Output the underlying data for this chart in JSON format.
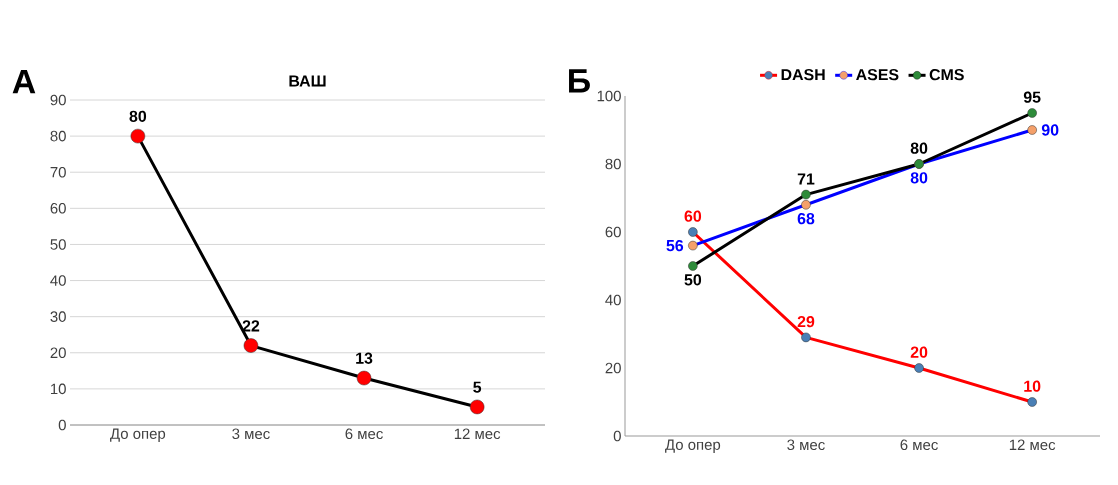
{
  "chart_data": [
    {
      "type": "line",
      "title": "ВАШ",
      "annotations": [
        "А"
      ],
      "categories": [
        "До опер",
        "3 мес",
        "6 мес",
        "12 мес"
      ],
      "series": [
        {
          "color": "#000000",
          "colors": [
            "#ff0000",
            "#ff0000",
            "#ff0000",
            "#ff0000"
          ],
          "values": [
            80,
            22,
            13,
            5
          ]
        }
      ],
      "ylim": [
        0,
        90
      ],
      "yticks": [
        0,
        10,
        20,
        30,
        40,
        50,
        60,
        70,
        80,
        90
      ],
      "grid": "y",
      "marker": "circle",
      "data_labels": true,
      "legend": false
    },
    {
      "type": "line",
      "annotations": [
        "Б"
      ],
      "categories": [
        "До опер",
        "3 мес",
        "6 мес",
        "12 мес"
      ],
      "series": [
        {
          "name": "DASH",
          "color": "#ff0000",
          "colors": [
            "#4a7fb5",
            "#4a7fb5",
            "#4a7fb5",
            "#4a7fb5"
          ],
          "values": [
            60,
            29,
            20,
            10
          ]
        },
        {
          "name": "ASES",
          "color": "#0000ff",
          "colors": [
            "#f4a06a",
            "#f4a06a",
            "#f4a06a",
            "#f4a06a"
          ],
          "values": [
            56,
            68,
            80,
            90
          ]
        },
        {
          "name": "CMS",
          "color": "#000000",
          "colors": [
            "#2e8b3a",
            "#2e8b3a",
            "#2e8b3a",
            "#2e8b3a"
          ],
          "values": [
            50,
            71,
            80,
            95
          ]
        }
      ],
      "ylim": [
        0,
        100
      ],
      "yticks": [
        0,
        20,
        40,
        60,
        80,
        100
      ],
      "grid": false,
      "marker": "circle",
      "data_labels": true,
      "legend": "top"
    }
  ]
}
